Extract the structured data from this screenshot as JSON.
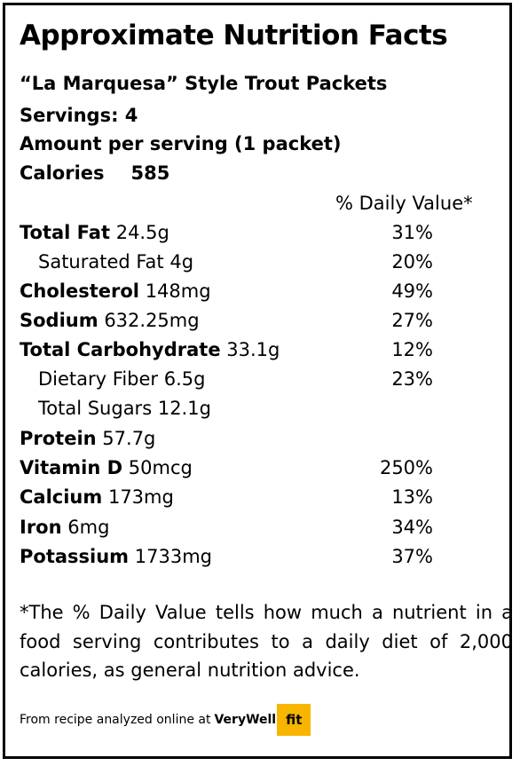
{
  "title": "Approximate Nutrition Facts",
  "recipe_name": "“La Marquesa” Style Trout Packets",
  "servings": "Servings: 4",
  "amount_per_serving": "Amount per serving (1 packet)",
  "calories": {
    "label": "Calories",
    "value": "585"
  },
  "daily_value_header": "% Daily Value*",
  "nutrients": [
    {
      "name": "Total Fat",
      "amount": "24.5g",
      "dv": "31%"
    },
    {
      "name": "Saturated Fat",
      "amount": "4g",
      "dv": "20%"
    },
    {
      "name": "Cholesterol",
      "amount": "148mg",
      "dv": "49%"
    },
    {
      "name": "Sodium",
      "amount": "632.25mg",
      "dv": "27%"
    },
    {
      "name": "Total Carbohydrate",
      "amount": "33.1g",
      "dv": "12%"
    },
    {
      "name": "Dietary Fiber",
      "amount": "6.5g",
      "dv": "23%"
    },
    {
      "name": "Total Sugars",
      "amount": "12.1g",
      "dv": ""
    },
    {
      "name": "Protein",
      "amount": "57.7g",
      "dv": ""
    },
    {
      "name": "Vitamin D",
      "amount": "50mcg",
      "dv": "250%"
    },
    {
      "name": "Calcium",
      "amount": "173mg",
      "dv": "13%"
    },
    {
      "name": "Iron",
      "amount": "6mg",
      "dv": "34%"
    },
    {
      "name": "Potassium",
      "amount": "1733mg",
      "dv": "37%"
    }
  ],
  "footnote": "*The % Daily Value tells how much a nutrient in a food serving contributes to a daily diet of 2,000 calories, as general nutrition advice.",
  "source": {
    "text": "From recipe analyzed online at",
    "brand_part1": "VeryWell",
    "brand_part2": "fit",
    "brand_color": "#f7b500"
  }
}
